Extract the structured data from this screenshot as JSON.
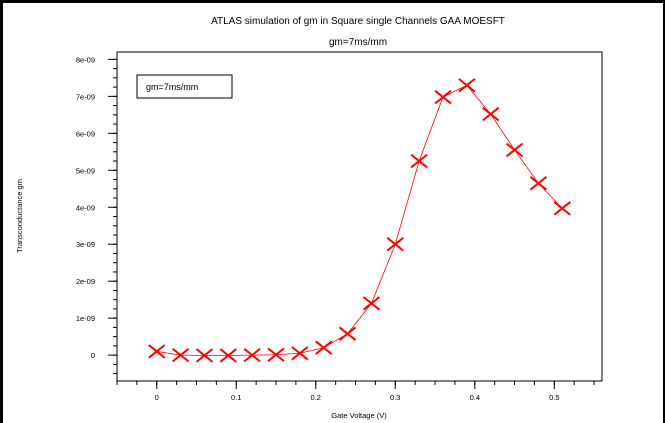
{
  "chart_data": {
    "type": "line",
    "title": "ATLAS simulation of  gm in Square single Channels GAA MOESFT",
    "subtitle": "gm=7ms/mm",
    "xlabel": "Gate Voltage (V)",
    "ylabel": "Transconductance gm",
    "legend": "gm=7ms/mm",
    "legend_position": "top-left",
    "xlim": [
      -0.05,
      0.56
    ],
    "ylim": [
      -7e-10,
      8.2e-09
    ],
    "x_ticks": [
      0,
      0.1,
      0.2,
      0.3,
      0.4,
      0.5
    ],
    "x_tick_labels": [
      "0",
      "0.1",
      "0.2",
      "0.3",
      "0.4",
      "0.5"
    ],
    "y_ticks": [
      0,
      1e-09,
      2e-09,
      3e-09,
      4e-09,
      5e-09,
      6e-09,
      7e-09,
      8e-09
    ],
    "y_tick_labels": [
      "0",
      "1e-09",
      "2e-09",
      "3e-09",
      "4e-09",
      "5e-09",
      "6e-09",
      "7e-09",
      "8e-09"
    ],
    "grid": false,
    "series": [
      {
        "color": "#ff0000",
        "marker": "x",
        "x": [
          0,
          0.03,
          0.06,
          0.09,
          0.12,
          0.15,
          0.18,
          0.21,
          0.24,
          0.27,
          0.3,
          0.33,
          0.36,
          0.39,
          0.42,
          0.45,
          0.48,
          0.51
        ],
        "y": [
          1e-10,
          0,
          -1e-11,
          -1e-11,
          0,
          1e-11,
          5e-11,
          2e-10,
          5.8e-10,
          1.4e-09,
          3e-09,
          5.25e-09,
          6.98e-09,
          7.3e-09,
          6.52e-09,
          5.55e-09,
          4.65e-09,
          3.97e-09
        ]
      }
    ]
  }
}
